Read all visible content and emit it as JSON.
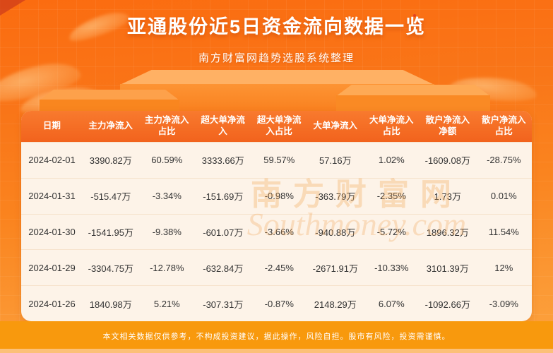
{
  "page": {
    "title": "亚通股份近5日资金流向数据一览",
    "subtitle": "南方财富网趋势选股系统整理",
    "footer_disclaimer": "本文相关数据仅供参考，不构成投资建议，据此操作，风险自担。股市有风险，投资需谨慎。"
  },
  "watermark": {
    "cn": "南方财富网",
    "en": "Southmoney.com"
  },
  "colors": {
    "background_top": "#fb6c10",
    "background_bottom": "#fca43f",
    "table_header_bg": "#f2631d",
    "table_body_bg": "#fdf3e8",
    "table_text": "#333333",
    "footer_bg": "#f8990d",
    "footer_strip": "#fcc078",
    "title_text": "#ffffff"
  },
  "chart_data": {
    "type": "table",
    "title": "亚通股份近5日资金流向数据一览",
    "columns": [
      "日期",
      "主力净流入",
      "主力净流入占比",
      "超大单净流入",
      "超大单净流入占比",
      "大单净流入",
      "大单净流入占比",
      "散户净流入净额",
      "散户净流入占比"
    ],
    "rows": [
      [
        "2024-02-01",
        "3390.82万",
        "60.59%",
        "3333.66万",
        "59.57%",
        "57.16万",
        "1.02%",
        "-1609.08万",
        "-28.75%"
      ],
      [
        "2024-01-31",
        "-515.47万",
        "-3.34%",
        "-151.69万",
        "-0.98%",
        "-363.79万",
        "-2.35%",
        "1.73万",
        "0.01%"
      ],
      [
        "2024-01-30",
        "-1541.95万",
        "-9.38%",
        "-601.07万",
        "-3.66%",
        "-940.88万",
        "-5.72%",
        "1896.32万",
        "11.54%"
      ],
      [
        "2024-01-29",
        "-3304.75万",
        "-12.78%",
        "-632.84万",
        "-2.45%",
        "-2671.91万",
        "-10.33%",
        "3101.39万",
        "12%"
      ],
      [
        "2024-01-26",
        "1840.98万",
        "5.21%",
        "-307.31万",
        "-0.87%",
        "2148.29万",
        "6.07%",
        "-1092.66万",
        "-3.09%"
      ]
    ]
  }
}
